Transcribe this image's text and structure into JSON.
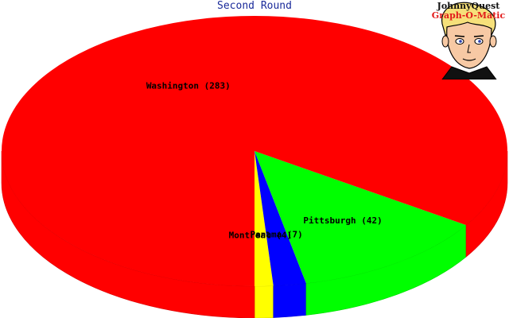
{
  "chart_data": {
    "type": "pie",
    "title": "Second Round",
    "style": "3d",
    "slices": [
      {
        "label": "Washington (283)",
        "name": "Washington",
        "value": 283,
        "color": "#ff0000"
      },
      {
        "label": "Pittsburgh (42)",
        "name": "Pittsburgh",
        "value": 42,
        "color": "#00ff00"
      },
      {
        "label": "Panama (7)",
        "name": "Panama",
        "value": 7,
        "color": "#0000ff"
      },
      {
        "label": "Montreal (4)",
        "name": "Montreal",
        "value": 4,
        "color": "#ffff00"
      }
    ]
  },
  "logo": {
    "line1": "JohnnyQuest",
    "line2": "Graph-O-Matic"
  }
}
